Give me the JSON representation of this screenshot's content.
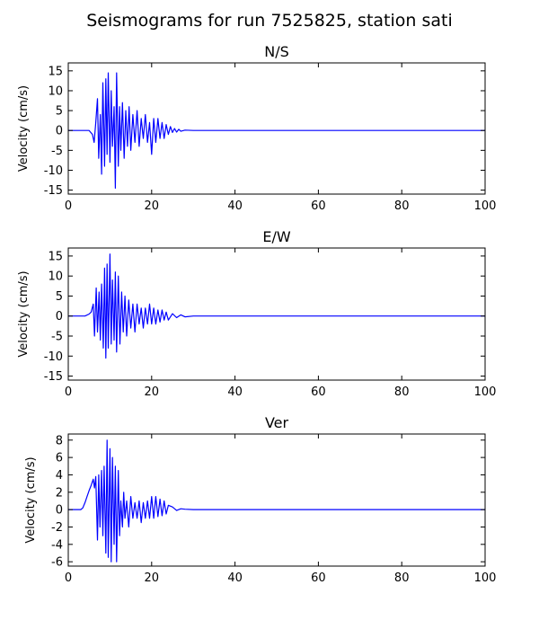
{
  "figure": {
    "title": "Seismograms for run 7525825, station sati"
  },
  "colors": {
    "trace": "#0000ff",
    "axes": "#000000",
    "background": "#ffffff"
  },
  "chart_data": [
    {
      "type": "line",
      "title": "N/S",
      "xlabel": "",
      "ylabel": "Velocity (cm/s)",
      "xlim": [
        0,
        100
      ],
      "ylim": [
        -16,
        17
      ],
      "xticks": [
        0,
        20,
        40,
        60,
        80,
        100
      ],
      "yticks": [
        -15,
        -10,
        -5,
        0,
        5,
        10,
        15
      ],
      "grid": false,
      "x": [
        0,
        5,
        5.8,
        6.2,
        6.6,
        7.0,
        7.3,
        7.7,
        8.0,
        8.3,
        8.7,
        9.0,
        9.3,
        9.6,
        10.0,
        10.3,
        10.6,
        11.0,
        11.3,
        11.6,
        12.0,
        12.3,
        12.6,
        13.0,
        13.4,
        13.8,
        14.2,
        14.6,
        15.0,
        15.5,
        16.0,
        16.5,
        17.0,
        17.5,
        18.0,
        18.5,
        19.0,
        19.5,
        20.0,
        20.5,
        21.0,
        21.5,
        22.0,
        22.5,
        23.0,
        23.5,
        24.0,
        24.5,
        25.0,
        25.5,
        26.0,
        26.5,
        27.0,
        28.0,
        30.0,
        100
      ],
      "y": [
        0,
        0,
        -1,
        -3,
        2,
        8,
        -7,
        4,
        -11,
        12,
        -9,
        13,
        -6,
        14.5,
        -8,
        10,
        -4,
        6,
        -14.5,
        14.5,
        -9,
        6,
        -5,
        7,
        -7,
        5,
        -4,
        6,
        -5,
        4,
        -3,
        5,
        -4,
        3,
        -2,
        4,
        -3,
        2,
        -6,
        3,
        -3,
        3,
        -2,
        2,
        -2,
        1.5,
        -1,
        1,
        -0.5,
        0.5,
        -0.4,
        0.3,
        -0.2,
        0.1,
        0,
        0
      ]
    },
    {
      "type": "line",
      "title": "E/W",
      "xlabel": "",
      "ylabel": "Velocity (cm/s)",
      "xlim": [
        0,
        100
      ],
      "ylim": [
        -16,
        17
      ],
      "xticks": [
        0,
        20,
        40,
        60,
        80,
        100
      ],
      "yticks": [
        -15,
        -10,
        -5,
        0,
        5,
        10,
        15
      ],
      "grid": false,
      "x": [
        0,
        4,
        5,
        5.5,
        6.0,
        6.3,
        6.7,
        7.0,
        7.4,
        7.7,
        8.0,
        8.4,
        8.7,
        9.0,
        9.3,
        9.6,
        10.0,
        10.3,
        10.6,
        11.0,
        11.3,
        11.6,
        12.0,
        12.4,
        12.8,
        13.2,
        13.6,
        14.0,
        14.5,
        15.0,
        15.5,
        16.0,
        16.5,
        17.0,
        17.5,
        18.0,
        18.5,
        19.0,
        19.5,
        20.0,
        20.5,
        21.0,
        21.5,
        22.0,
        22.5,
        23.0,
        23.5,
        24.0,
        25.0,
        26.0,
        27.0,
        28.0,
        30.0,
        100
      ],
      "y": [
        0,
        0,
        0.5,
        1,
        3,
        -5,
        7,
        -4,
        6,
        -6,
        8,
        -8,
        12,
        -10.5,
        13,
        -8,
        15.5,
        -7,
        9,
        -6,
        11,
        -9,
        10,
        -7,
        6,
        -4,
        5,
        -5,
        4,
        -3,
        3,
        -4,
        3,
        -2,
        2,
        -3,
        2,
        -2,
        3,
        -2,
        2,
        -2,
        1.5,
        -1.5,
        1.5,
        -1,
        1,
        -1,
        0.6,
        -0.4,
        0.3,
        -0.2,
        0,
        0
      ]
    },
    {
      "type": "line",
      "title": "Ver",
      "xlabel": "",
      "ylabel": "Velocity (cm/s)",
      "xlim": [
        0,
        100
      ],
      "ylim": [
        -6.5,
        8.7
      ],
      "xticks": [
        0,
        20,
        40,
        60,
        80,
        100
      ],
      "yticks": [
        -6,
        -4,
        -2,
        0,
        2,
        4,
        6,
        8
      ],
      "grid": false,
      "x": [
        0,
        3,
        3.5,
        4,
        4.5,
        5,
        5.5,
        6.0,
        6.3,
        6.6,
        7.0,
        7.3,
        7.6,
        8.0,
        8.3,
        8.6,
        9.0,
        9.3,
        9.6,
        10.0,
        10.3,
        10.6,
        11.0,
        11.3,
        11.6,
        12.0,
        12.3,
        12.6,
        13.0,
        13.3,
        13.6,
        14.0,
        14.5,
        15.0,
        15.5,
        16.0,
        16.5,
        17.0,
        17.5,
        18.0,
        18.5,
        19.0,
        19.5,
        20.0,
        20.5,
        21.0,
        21.5,
        22.0,
        22.5,
        23.0,
        23.5,
        24.0,
        25.0,
        26.0,
        27.0,
        28.0,
        30.0,
        100
      ],
      "y": [
        0,
        0,
        0.2,
        0.8,
        1.5,
        2.2,
        2.8,
        3.5,
        2.5,
        3.8,
        -3.5,
        4,
        -2,
        4.5,
        -3,
        5,
        -5,
        8,
        -5.5,
        7,
        -6,
        6,
        -4,
        5,
        -6,
        4.5,
        -3,
        1,
        -2,
        2,
        -1,
        1,
        -2,
        1.5,
        -1,
        0.8,
        -1,
        1,
        -1.5,
        0.8,
        -1,
        1,
        -1,
        1.5,
        -1,
        1.5,
        -0.8,
        1.2,
        -0.7,
        1,
        -0.5,
        0.5,
        0.3,
        -0.1,
        0.1,
        0.05,
        0,
        0
      ]
    }
  ]
}
